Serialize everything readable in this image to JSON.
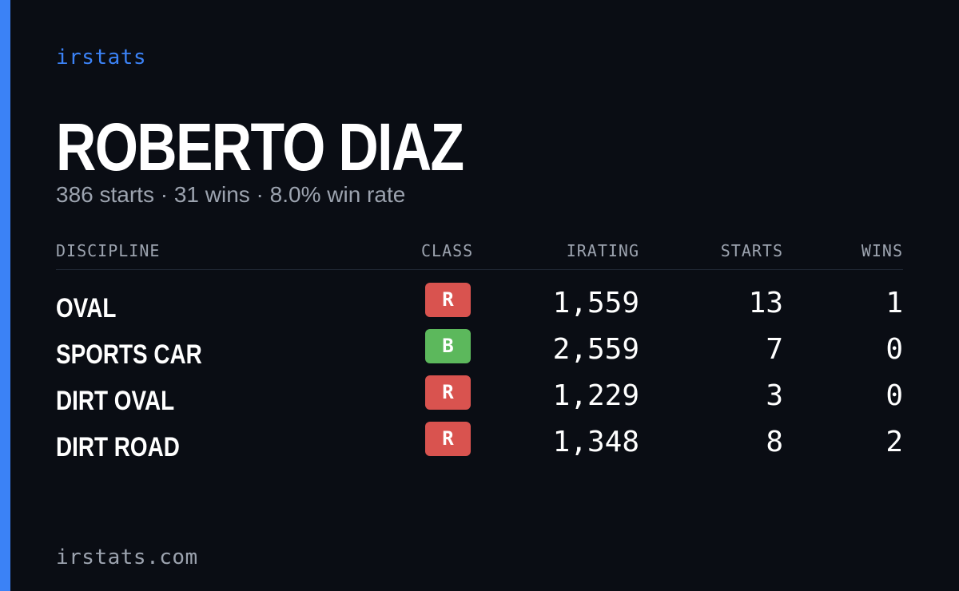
{
  "colors": {
    "accent": "#3b82f6",
    "background": "#0a0d14",
    "class_r": "#d9534f",
    "class_b": "#5cb85c"
  },
  "brand": "irstats",
  "player": {
    "name": "ROBERTO DIAZ",
    "summary": "386 starts · 31 wins · 8.0% win rate"
  },
  "table": {
    "headers": {
      "discipline": "DISCIPLINE",
      "class": "CLASS",
      "irating": "IRATING",
      "starts": "STARTS",
      "wins": "WINS"
    },
    "rows": [
      {
        "discipline": "OVAL",
        "class": "R",
        "class_color": "#d9534f",
        "irating": "1,559",
        "starts": "13",
        "wins": "1"
      },
      {
        "discipline": "SPORTS CAR",
        "class": "B",
        "class_color": "#5cb85c",
        "irating": "2,559",
        "starts": "7",
        "wins": "0"
      },
      {
        "discipline": "DIRT OVAL",
        "class": "R",
        "class_color": "#d9534f",
        "irating": "1,229",
        "starts": "3",
        "wins": "0"
      },
      {
        "discipline": "DIRT ROAD",
        "class": "R",
        "class_color": "#d9534f",
        "irating": "1,348",
        "starts": "8",
        "wins": "2"
      }
    ]
  },
  "footer": "irstats.com"
}
